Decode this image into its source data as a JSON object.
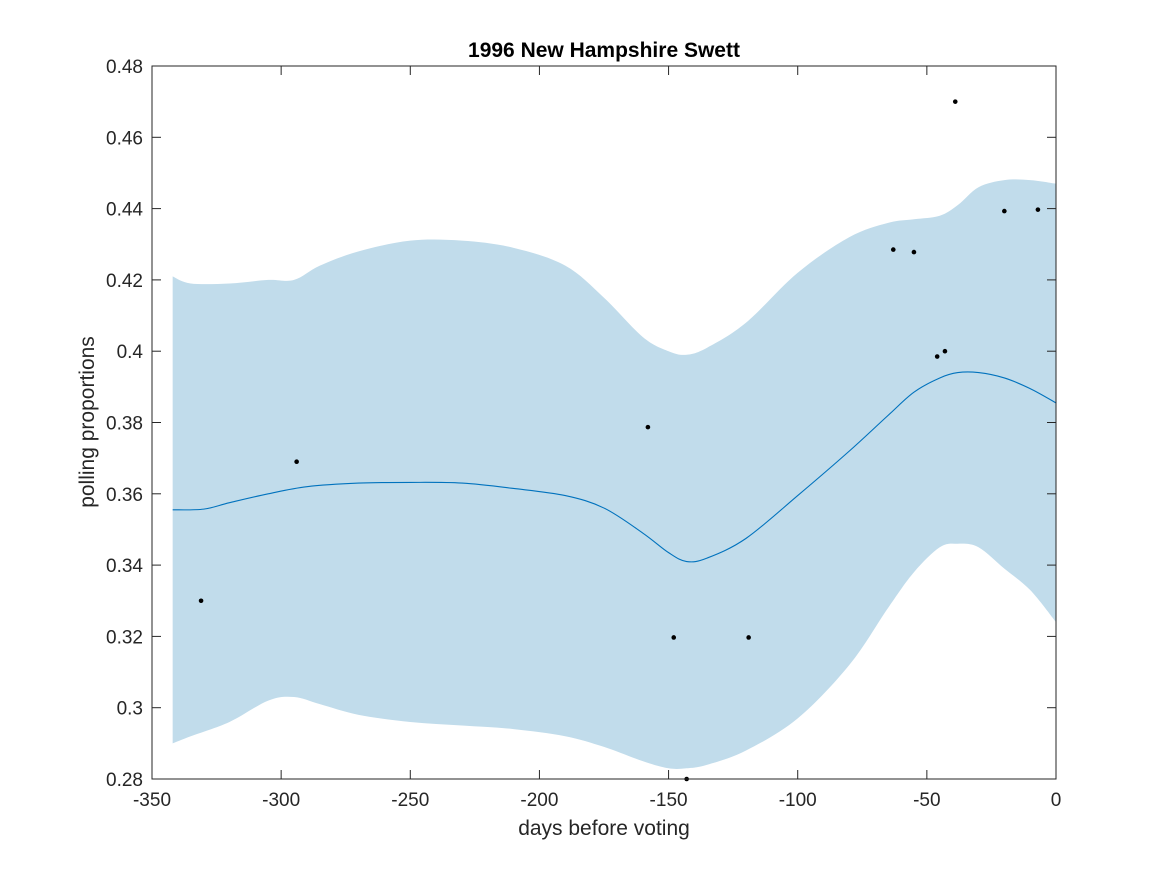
{
  "chart_data": {
    "type": "line",
    "title": "1996 New Hampshire Swett",
    "xlabel": "days before voting",
    "ylabel": "polling proportions",
    "xlim": [
      -350,
      0
    ],
    "ylim": [
      0.28,
      0.48
    ],
    "xticks": [
      -350,
      -300,
      -250,
      -200,
      -150,
      -100,
      -50,
      0
    ],
    "xtick_labels": [
      "-350",
      "-300",
      "-250",
      "-200",
      "-150",
      "-100",
      "-50",
      "0"
    ],
    "yticks": [
      0.28,
      0.3,
      0.32,
      0.34,
      0.36,
      0.38,
      0.4,
      0.42,
      0.44,
      0.46,
      0.48
    ],
    "ytick_labels": [
      "0.28",
      "0.3",
      "0.32",
      "0.34",
      "0.36",
      "0.38",
      "0.4",
      "0.42",
      "0.44",
      "0.46",
      "0.48"
    ],
    "grid": false,
    "colors": {
      "band": "#c1dceb",
      "line": "#0072bd",
      "points": "#000000",
      "axes": "#262626"
    },
    "band": {
      "name": "confidence band",
      "x": [
        -342,
        -335,
        -320,
        -305,
        -295,
        -285,
        -270,
        -250,
        -230,
        -210,
        -190,
        -175,
        -160,
        -150,
        -143,
        -135,
        -120,
        -100,
        -80,
        -65,
        -55,
        -45,
        -38,
        -30,
        -20,
        -10,
        0
      ],
      "upper": [
        0.421,
        0.419,
        0.419,
        0.42,
        0.42,
        0.424,
        0.428,
        0.431,
        0.431,
        0.429,
        0.424,
        0.415,
        0.404,
        0.4,
        0.399,
        0.401,
        0.408,
        0.422,
        0.432,
        0.436,
        0.437,
        0.438,
        0.441,
        0.446,
        0.448,
        0.448,
        0.447
      ],
      "lower": [
        0.29,
        0.292,
        0.296,
        0.302,
        0.303,
        0.301,
        0.298,
        0.296,
        0.295,
        0.294,
        0.292,
        0.289,
        0.285,
        0.283,
        0.283,
        0.284,
        0.288,
        0.297,
        0.312,
        0.328,
        0.338,
        0.345,
        0.346,
        0.345,
        0.339,
        0.333,
        0.324
      ]
    },
    "series": [
      {
        "name": "fitted trend",
        "x": [
          -342,
          -330,
          -320,
          -305,
          -290,
          -270,
          -250,
          -230,
          -210,
          -190,
          -175,
          -160,
          -150,
          -143,
          -135,
          -120,
          -100,
          -80,
          -65,
          -55,
          -45,
          -38,
          -30,
          -20,
          -10,
          0
        ],
        "values": [
          0.3555,
          0.3557,
          0.3575,
          0.36,
          0.362,
          0.363,
          0.3632,
          0.363,
          0.3615,
          0.3595,
          0.356,
          0.349,
          0.3435,
          0.341,
          0.342,
          0.3475,
          0.3595,
          0.372,
          0.382,
          0.3885,
          0.3925,
          0.394,
          0.394,
          0.3925,
          0.3895,
          0.3855
        ]
      }
    ],
    "points": {
      "name": "polls",
      "x": [
        -331,
        -294,
        -158,
        -148,
        -143,
        -119,
        -63,
        -55,
        -46,
        -43,
        -39,
        -20,
        -7
      ],
      "values": [
        0.33,
        0.369,
        0.3787,
        0.3197,
        0.28,
        0.3197,
        0.4285,
        0.4278,
        0.3985,
        0.4,
        0.47,
        0.4393,
        0.4397
      ]
    }
  }
}
